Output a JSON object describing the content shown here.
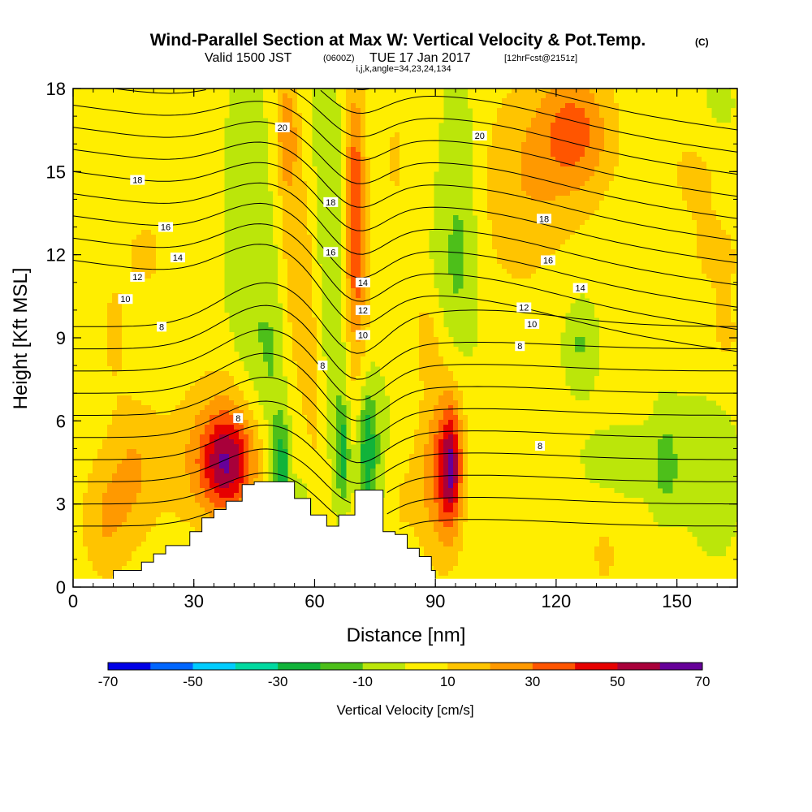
{
  "chart_data": {
    "type": "heatmap",
    "title": "Wind-Parallel Section at Max W: Vertical Velocity & Pot.Temp.",
    "title_suffix": "(C)",
    "subtitle": {
      "prefix": "Valid 1500 JST",
      "utc": "(0600Z)",
      "date": "TUE 17 Jan 2017",
      "forecast": "[12hrFcst@2151z]"
    },
    "indices_line": "i,j,k,angle=34,23,24,134",
    "xlabel": "Distance [nm]",
    "ylabel": "Height [Kft MSL]",
    "xlim": [
      0,
      165
    ],
    "ylim": [
      0,
      18
    ],
    "x_ticks": [
      "0",
      "30",
      "60",
      "90",
      "120",
      "150"
    ],
    "y_ticks": [
      "0",
      "3",
      "6",
      "9",
      "12",
      "15",
      "18"
    ],
    "colorbar": {
      "label": "Vertical Velocity [cm/s]",
      "range": [
        -70,
        70
      ],
      "tick_labels": [
        "-70",
        "-50",
        "-30",
        "-10",
        "10",
        "30",
        "50",
        "70"
      ],
      "colors": [
        "#0000e6",
        "#0066ff",
        "#00ccff",
        "#00d9a0",
        "#11b33a",
        "#4dbf1a",
        "#bbe60a",
        "#ffee00",
        "#ffc400",
        "#ff9900",
        "#ff5500",
        "#e60000",
        "#a8003a",
        "#660099"
      ]
    },
    "velocity_field": {
      "background": "#bbe60a",
      "blobs": [
        {
          "x": 8,
          "z": 2.4,
          "rx": 6,
          "rz": 2.3,
          "w": 16
        },
        {
          "x": 10,
          "z": 9.0,
          "rx": 4,
          "rz": 2.2,
          "w": 8
        },
        {
          "x": 15,
          "z": 4.2,
          "rx": 6,
          "rz": 2.5,
          "w": 14
        },
        {
          "x": 18,
          "z": 12.0,
          "rx": 8,
          "rz": 2.4,
          "w": 8
        },
        {
          "x": 12,
          "z": 15.5,
          "rx": 3,
          "rz": 2.0,
          "w": 6
        },
        {
          "x": 30,
          "z": 4.5,
          "rx": 14,
          "rz": 2.6,
          "w": 10
        },
        {
          "x": 38,
          "z": 4.4,
          "rx": 6,
          "rz": 1.6,
          "w": 32
        },
        {
          "x": 39,
          "z": 5.0,
          "rx": 9,
          "rz": 2.6,
          "w": 22
        },
        {
          "x": 43,
          "z": 13.0,
          "rx": 5,
          "rz": 6.0,
          "w": -12
        },
        {
          "x": 46,
          "z": 8.0,
          "rx": 4,
          "rz": 3.0,
          "w": -8
        },
        {
          "x": 50,
          "z": 6.5,
          "rx": 3,
          "rz": 6.0,
          "w": -12
        },
        {
          "x": 52,
          "z": 4.5,
          "rx": 2,
          "rz": 1.6,
          "w": -26
        },
        {
          "x": 53,
          "z": 16.5,
          "rx": 2.5,
          "rz": 2.0,
          "w": 24
        },
        {
          "x": 55,
          "z": 12.5,
          "rx": 4,
          "rz": 4.0,
          "w": 14
        },
        {
          "x": 56,
          "z": 2.8,
          "rx": 3,
          "rz": 1.0,
          "w": -14
        },
        {
          "x": 58,
          "z": 9.5,
          "rx": 3,
          "rz": 3.5,
          "w": 10
        },
        {
          "x": 61,
          "z": 6.0,
          "rx": 3,
          "rz": 3.0,
          "w": 8
        },
        {
          "x": 63,
          "z": 14.5,
          "rx": 4,
          "rz": 5.5,
          "w": -10
        },
        {
          "x": 65,
          "z": 7.5,
          "rx": 3,
          "rz": 4.0,
          "w": -12
        },
        {
          "x": 67,
          "z": 4.8,
          "rx": 1.5,
          "rz": 1.6,
          "w": -26
        },
        {
          "x": 70,
          "z": 14.0,
          "rx": 2.5,
          "rz": 4.5,
          "w": 32
        },
        {
          "x": 71,
          "z": 10.5,
          "rx": 3,
          "rz": 4.0,
          "w": 12
        },
        {
          "x": 73,
          "z": 5.0,
          "rx": 2,
          "rz": 2.4,
          "w": -24
        },
        {
          "x": 75,
          "z": 4.5,
          "rx": 4,
          "rz": 3.0,
          "w": -12
        },
        {
          "x": 80,
          "z": 3.0,
          "rx": 5,
          "rz": 2.4,
          "w": 8
        },
        {
          "x": 80,
          "z": 15.5,
          "rx": 3,
          "rz": 3.0,
          "w": 8
        },
        {
          "x": 88,
          "z": 9.0,
          "rx": 3.5,
          "rz": 1.6,
          "w": 12
        },
        {
          "x": 89,
          "z": 4.0,
          "rx": 4.5,
          "rz": 2.8,
          "w": 16
        },
        {
          "x": 93,
          "z": 4.5,
          "rx": 4,
          "rz": 3.2,
          "w": 24
        },
        {
          "x": 94,
          "z": 4.3,
          "rx": 2.5,
          "rz": 2.0,
          "w": 34
        },
        {
          "x": 96,
          "z": 14.0,
          "rx": 5,
          "rz": 4.5,
          "w": -12
        },
        {
          "x": 95,
          "z": 11.0,
          "rx": 6,
          "rz": 3.0,
          "w": -8
        },
        {
          "x": 110,
          "z": 13.5,
          "rx": 12,
          "rz": 3.5,
          "w": 10
        },
        {
          "x": 120,
          "z": 16.0,
          "rx": 14,
          "rz": 3.0,
          "w": 14
        },
        {
          "x": 125,
          "z": 16.5,
          "rx": 8,
          "rz": 2.0,
          "w": 20
        },
        {
          "x": 126,
          "z": 8.8,
          "rx": 4,
          "rz": 1.6,
          "w": -14
        },
        {
          "x": 120,
          "z": 2.0,
          "rx": 5,
          "rz": 2.2,
          "w": 7
        },
        {
          "x": 132,
          "z": 1.2,
          "rx": 4,
          "rz": 1.6,
          "w": 9
        },
        {
          "x": 137,
          "z": 4.5,
          "rx": 14,
          "rz": 1.6,
          "w": -6
        },
        {
          "x": 147,
          "z": 4.5,
          "rx": 3,
          "rz": 2.0,
          "w": -12
        },
        {
          "x": 157,
          "z": 4.0,
          "rx": 8,
          "rz": 2.8,
          "w": -12
        },
        {
          "x": 150,
          "z": 1.0,
          "rx": 6,
          "rz": 1.2,
          "w": 7
        },
        {
          "x": 160,
          "z": 12.0,
          "rx": 8,
          "rz": 1.5,
          "w": 8
        },
        {
          "x": 162,
          "z": 9.0,
          "rx": 6,
          "rz": 2.0,
          "w": 8
        },
        {
          "x": 155,
          "z": 15.0,
          "rx": 8,
          "rz": 2.0,
          "w": 10
        },
        {
          "x": 160,
          "z": 17.0,
          "rx": 6,
          "rz": 2.0,
          "w": -6
        }
      ]
    },
    "pot_temp_contour_labels": [
      {
        "text": "20",
        "x": 52,
        "z": 16.6
      },
      {
        "text": "20",
        "x": 101,
        "z": 16.3
      },
      {
        "text": "18",
        "x": 16,
        "z": 14.7
      },
      {
        "text": "18",
        "x": 64,
        "z": 13.9
      },
      {
        "text": "18",
        "x": 117,
        "z": 13.3
      },
      {
        "text": "16",
        "x": 23,
        "z": 13.0
      },
      {
        "text": "16",
        "x": 64,
        "z": 12.1
      },
      {
        "text": "16",
        "x": 118,
        "z": 11.8
      },
      {
        "text": "14",
        "x": 26,
        "z": 11.9
      },
      {
        "text": "14",
        "x": 72,
        "z": 11.0
      },
      {
        "text": "14",
        "x": 126,
        "z": 10.8
      },
      {
        "text": "12",
        "x": 16,
        "z": 11.2
      },
      {
        "text": "12",
        "x": 72,
        "z": 10.0
      },
      {
        "text": "12",
        "x": 112,
        "z": 10.1
      },
      {
        "text": "10",
        "x": 13,
        "z": 10.4
      },
      {
        "text": "10",
        "x": 72,
        "z": 9.1
      },
      {
        "text": "10",
        "x": 114,
        "z": 9.5
      },
      {
        "text": "8",
        "x": 22,
        "z": 9.4
      },
      {
        "text": "8",
        "x": 62,
        "z": 8.0
      },
      {
        "text": "8",
        "x": 111,
        "z": 8.7
      },
      {
        "text": "8",
        "x": 41,
        "z": 6.1
      },
      {
        "text": "8",
        "x": 116,
        "z": 5.1
      }
    ],
    "terrain_nm_kft": [
      [
        10,
        0.6
      ],
      [
        17,
        0.9
      ],
      [
        20,
        1.2
      ],
      [
        23,
        1.5
      ],
      [
        29,
        2.0
      ],
      [
        32,
        2.5
      ],
      [
        35,
        2.8
      ],
      [
        38,
        3.1
      ],
      [
        42,
        3.7
      ],
      [
        45,
        3.8
      ],
      [
        51,
        3.8
      ],
      [
        55,
        3.2
      ],
      [
        59,
        2.6
      ],
      [
        63,
        2.2
      ],
      [
        66,
        2.6
      ],
      [
        70,
        3.5
      ],
      [
        75,
        3.5
      ],
      [
        77,
        2.0
      ],
      [
        80,
        1.9
      ],
      [
        83,
        1.4
      ],
      [
        86,
        1.1
      ],
      [
        89,
        0.6
      ],
      [
        90,
        0.6
      ]
    ]
  }
}
